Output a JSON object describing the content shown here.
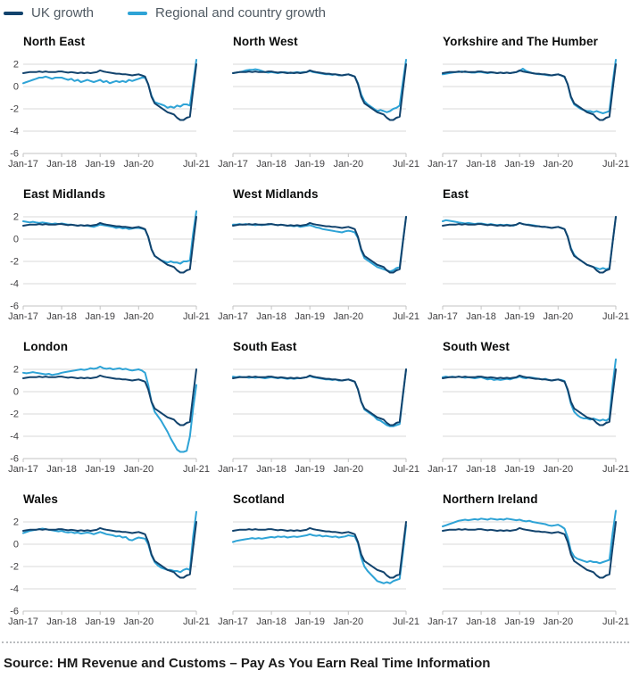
{
  "legend": {
    "items": [
      {
        "label": "UK growth",
        "color": "#12436d"
      },
      {
        "label": "Regional and country growth",
        "color": "#2ea3d6"
      }
    ]
  },
  "source": {
    "text": "Source: HM Revenue and Customs – Pay As You Earn Real Time Information"
  },
  "chart_data": {
    "type": "line",
    "layout": {
      "grid": "4 rows x 3 columns",
      "ylim": [
        -6,
        2
      ],
      "y_ticks": [
        2,
        0,
        -2,
        -4,
        -6
      ],
      "y_labels_first_column_only": true,
      "x_tick_labels": [
        "Jan-17",
        "Jan-18",
        "Jan-19",
        "Jan-20",
        "Jul-21"
      ],
      "x_tick_indices": [
        0,
        12,
        24,
        36,
        54
      ],
      "gridline_color": "#d9d9d9",
      "axis_color": "#c3c3c3",
      "legend_position": "top-left"
    },
    "categories": [
      "Jan-17",
      "Feb-17",
      "Mar-17",
      "Apr-17",
      "May-17",
      "Jun-17",
      "Jul-17",
      "Aug-17",
      "Sep-17",
      "Oct-17",
      "Nov-17",
      "Dec-17",
      "Jan-18",
      "Feb-18",
      "Mar-18",
      "Apr-18",
      "May-18",
      "Jun-18",
      "Jul-18",
      "Aug-18",
      "Sep-18",
      "Oct-18",
      "Nov-18",
      "Dec-18",
      "Jan-19",
      "Feb-19",
      "Mar-19",
      "Apr-19",
      "May-19",
      "Jun-19",
      "Jul-19",
      "Aug-19",
      "Sep-19",
      "Oct-19",
      "Nov-19",
      "Dec-19",
      "Jan-20",
      "Feb-20",
      "Mar-20",
      "Apr-20",
      "May-20",
      "Jun-20",
      "Jul-20",
      "Aug-20",
      "Sep-20",
      "Oct-20",
      "Nov-20",
      "Dec-20",
      "Jan-21",
      "Feb-21",
      "Mar-21",
      "Apr-21",
      "May-21",
      "Jun-21",
      "Jul-21"
    ],
    "uk_series": {
      "name": "UK growth",
      "values": [
        1.2,
        1.25,
        1.3,
        1.3,
        1.3,
        1.35,
        1.3,
        1.35,
        1.3,
        1.3,
        1.3,
        1.35,
        1.35,
        1.3,
        1.25,
        1.3,
        1.25,
        1.2,
        1.25,
        1.2,
        1.25,
        1.2,
        1.25,
        1.3,
        1.45,
        1.35,
        1.3,
        1.25,
        1.2,
        1.15,
        1.15,
        1.1,
        1.1,
        1.05,
        1.0,
        1.05,
        1.1,
        1.0,
        0.9,
        0.2,
        -0.9,
        -1.5,
        -1.7,
        -1.9,
        -2.1,
        -2.3,
        -2.4,
        -2.5,
        -2.8,
        -3.0,
        -3.0,
        -2.8,
        -2.7,
        -0.3,
        2.0
      ]
    },
    "panels": [
      {
        "title": "North East",
        "values": [
          0.3,
          0.4,
          0.5,
          0.6,
          0.7,
          0.8,
          0.8,
          0.9,
          0.8,
          0.7,
          0.8,
          0.8,
          0.8,
          0.7,
          0.6,
          0.7,
          0.5,
          0.6,
          0.4,
          0.5,
          0.6,
          0.5,
          0.4,
          0.5,
          0.6,
          0.4,
          0.5,
          0.3,
          0.4,
          0.5,
          0.4,
          0.5,
          0.4,
          0.6,
          0.5,
          0.6,
          0.7,
          0.8,
          0.8,
          0.2,
          -0.8,
          -1.4,
          -1.5,
          -1.6,
          -1.7,
          -1.9,
          -1.8,
          -1.9,
          -1.7,
          -1.8,
          -1.6,
          -1.6,
          -1.7,
          0.3,
          2.4
        ]
      },
      {
        "title": "North West",
        "values": [
          1.2,
          1.25,
          1.3,
          1.35,
          1.45,
          1.5,
          1.5,
          1.55,
          1.5,
          1.4,
          1.3,
          1.25,
          1.3,
          1.25,
          1.2,
          1.25,
          1.3,
          1.25,
          1.2,
          1.25,
          1.3,
          1.25,
          1.3,
          1.3,
          1.4,
          1.3,
          1.25,
          1.2,
          1.15,
          1.1,
          1.1,
          1.05,
          1.1,
          1.0,
          1.0,
          1.05,
          1.1,
          1.0,
          0.9,
          0.3,
          -0.7,
          -1.3,
          -1.6,
          -1.8,
          -2.0,
          -2.2,
          -2.1,
          -2.2,
          -2.3,
          -2.2,
          -2.0,
          -1.9,
          -1.7,
          0.4,
          2.4
        ]
      },
      {
        "title": "Yorkshire and The Humber",
        "values": [
          1.1,
          1.15,
          1.2,
          1.25,
          1.3,
          1.3,
          1.35,
          1.3,
          1.3,
          1.25,
          1.25,
          1.3,
          1.3,
          1.25,
          1.2,
          1.25,
          1.25,
          1.2,
          1.25,
          1.2,
          1.25,
          1.2,
          1.25,
          1.3,
          1.4,
          1.6,
          1.4,
          1.3,
          1.2,
          1.15,
          1.1,
          1.1,
          1.05,
          1.0,
          1.0,
          1.05,
          1.1,
          1.0,
          0.85,
          0.2,
          -1.0,
          -1.6,
          -1.8,
          -2.0,
          -2.1,
          -2.2,
          -2.2,
          -2.3,
          -2.2,
          -2.3,
          -2.4,
          -2.3,
          -2.2,
          0.3,
          2.4
        ]
      },
      {
        "title": "East Midlands",
        "values": [
          1.6,
          1.55,
          1.5,
          1.55,
          1.5,
          1.45,
          1.5,
          1.45,
          1.4,
          1.35,
          1.4,
          1.35,
          1.4,
          1.35,
          1.3,
          1.3,
          1.25,
          1.2,
          1.25,
          1.2,
          1.2,
          1.15,
          1.1,
          1.2,
          1.3,
          1.25,
          1.2,
          1.15,
          1.1,
          1.0,
          1.05,
          0.95,
          1.0,
          0.9,
          0.95,
          1.0,
          1.0,
          0.95,
          0.85,
          0.2,
          -0.9,
          -1.5,
          -1.7,
          -1.9,
          -2.0,
          -2.1,
          -2.0,
          -2.1,
          -2.1,
          -2.2,
          -2.0,
          -2.0,
          -1.9,
          0.5,
          2.5
        ]
      },
      {
        "title": "West Midlands",
        "values": [
          1.3,
          1.3,
          1.35,
          1.3,
          1.35,
          1.3,
          1.3,
          1.25,
          1.3,
          1.25,
          1.3,
          1.3,
          1.35,
          1.3,
          1.25,
          1.3,
          1.25,
          1.2,
          1.2,
          1.15,
          1.2,
          1.1,
          1.15,
          1.2,
          1.25,
          1.15,
          1.05,
          1.0,
          0.9,
          0.85,
          0.8,
          0.75,
          0.7,
          0.65,
          0.6,
          0.7,
          0.75,
          0.7,
          0.6,
          0.1,
          -1.0,
          -1.7,
          -1.9,
          -2.1,
          -2.3,
          -2.5,
          -2.6,
          -2.7,
          -2.8,
          -2.9,
          -2.8,
          -2.6,
          -2.5,
          -0.2,
          2.0
        ]
      },
      {
        "title": "East",
        "values": [
          1.6,
          1.7,
          1.65,
          1.6,
          1.55,
          1.5,
          1.45,
          1.4,
          1.45,
          1.4,
          1.35,
          1.4,
          1.4,
          1.35,
          1.3,
          1.35,
          1.3,
          1.25,
          1.3,
          1.25,
          1.3,
          1.25,
          1.2,
          1.3,
          1.45,
          1.35,
          1.3,
          1.3,
          1.25,
          1.2,
          1.15,
          1.1,
          1.1,
          1.05,
          1.0,
          1.05,
          1.1,
          1.0,
          0.9,
          0.25,
          -0.8,
          -1.4,
          -1.7,
          -1.9,
          -2.1,
          -2.3,
          -2.4,
          -2.5,
          -2.6,
          -2.7,
          -2.6,
          -2.7,
          -2.6,
          -0.3,
          2.0
        ]
      },
      {
        "title": "London",
        "values": [
          1.7,
          1.65,
          1.7,
          1.75,
          1.7,
          1.65,
          1.6,
          1.55,
          1.6,
          1.5,
          1.55,
          1.6,
          1.7,
          1.75,
          1.8,
          1.85,
          1.9,
          1.95,
          2.0,
          1.95,
          2.0,
          2.1,
          2.05,
          2.1,
          2.25,
          2.1,
          2.05,
          2.1,
          2.0,
          2.05,
          2.1,
          2.0,
          2.05,
          1.95,
          1.9,
          1.95,
          2.0,
          1.9,
          1.7,
          0.6,
          -0.9,
          -1.8,
          -2.2,
          -2.6,
          -3.1,
          -3.6,
          -4.2,
          -4.7,
          -5.2,
          -5.4,
          -5.4,
          -5.3,
          -4.0,
          -1.5,
          0.6
        ]
      },
      {
        "title": "South East",
        "values": [
          1.35,
          1.3,
          1.35,
          1.3,
          1.3,
          1.25,
          1.3,
          1.25,
          1.3,
          1.25,
          1.2,
          1.25,
          1.3,
          1.25,
          1.2,
          1.25,
          1.2,
          1.15,
          1.2,
          1.15,
          1.2,
          1.2,
          1.25,
          1.3,
          1.4,
          1.3,
          1.25,
          1.2,
          1.15,
          1.1,
          1.1,
          1.05,
          1.1,
          1.0,
          1.0,
          1.05,
          1.1,
          1.0,
          0.9,
          0.2,
          -0.9,
          -1.6,
          -1.8,
          -2.0,
          -2.2,
          -2.5,
          -2.6,
          -2.8,
          -3.0,
          -3.1,
          -3.1,
          -3.0,
          -2.9,
          -0.4,
          2.0
        ]
      },
      {
        "title": "South West",
        "values": [
          1.3,
          1.35,
          1.3,
          1.35,
          1.3,
          1.35,
          1.3,
          1.25,
          1.3,
          1.25,
          1.2,
          1.25,
          1.3,
          1.2,
          1.1,
          1.15,
          1.05,
          1.1,
          1.05,
          1.1,
          1.15,
          1.1,
          1.2,
          1.25,
          1.35,
          1.25,
          1.2,
          1.3,
          1.25,
          1.2,
          1.15,
          1.1,
          1.15,
          1.05,
          1.0,
          1.05,
          1.1,
          1.05,
          0.95,
          0.1,
          -1.1,
          -1.8,
          -2.1,
          -2.3,
          -2.4,
          -2.4,
          -2.5,
          -2.4,
          -2.5,
          -2.6,
          -2.5,
          -2.6,
          -2.4,
          0.6,
          2.9
        ]
      },
      {
        "title": "Wales",
        "values": [
          1.0,
          1.1,
          1.2,
          1.25,
          1.3,
          1.35,
          1.4,
          1.35,
          1.3,
          1.25,
          1.2,
          1.15,
          1.2,
          1.1,
          1.05,
          1.1,
          1.0,
          1.05,
          0.95,
          1.0,
          1.05,
          1.0,
          0.9,
          1.0,
          1.1,
          1.0,
          0.9,
          0.85,
          0.8,
          0.7,
          0.75,
          0.6,
          0.65,
          0.4,
          0.35,
          0.5,
          0.6,
          0.55,
          0.5,
          0.0,
          -1.0,
          -1.6,
          -1.9,
          -2.1,
          -2.2,
          -2.3,
          -2.3,
          -2.4,
          -2.4,
          -2.5,
          -2.3,
          -2.2,
          -2.3,
          0.7,
          2.9
        ]
      },
      {
        "title": "Scotland",
        "values": [
          0.2,
          0.3,
          0.35,
          0.4,
          0.45,
          0.5,
          0.55,
          0.5,
          0.55,
          0.5,
          0.55,
          0.6,
          0.65,
          0.6,
          0.7,
          0.65,
          0.7,
          0.6,
          0.65,
          0.7,
          0.65,
          0.7,
          0.75,
          0.8,
          0.9,
          0.8,
          0.75,
          0.8,
          0.7,
          0.75,
          0.7,
          0.65,
          0.7,
          0.6,
          0.65,
          0.7,
          0.8,
          0.75,
          0.7,
          0.1,
          -1.2,
          -2.0,
          -2.4,
          -2.7,
          -3.0,
          -3.3,
          -3.4,
          -3.5,
          -3.4,
          -3.5,
          -3.3,
          -3.2,
          -3.1,
          -0.8,
          1.7
        ]
      },
      {
        "title": "Northern Ireland",
        "values": [
          1.6,
          1.7,
          1.8,
          1.9,
          2.0,
          2.1,
          2.15,
          2.2,
          2.15,
          2.2,
          2.25,
          2.2,
          2.3,
          2.25,
          2.2,
          2.3,
          2.25,
          2.2,
          2.25,
          2.2,
          2.3,
          2.25,
          2.2,
          2.15,
          2.2,
          2.1,
          2.05,
          2.1,
          2.0,
          1.95,
          1.9,
          1.85,
          1.8,
          1.7,
          1.65,
          1.7,
          1.75,
          1.6,
          1.4,
          0.6,
          -0.6,
          -1.1,
          -1.3,
          -1.4,
          -1.5,
          -1.6,
          -1.5,
          -1.6,
          -1.6,
          -1.7,
          -1.6,
          -1.5,
          -1.4,
          1.0,
          3.0
        ]
      }
    ]
  }
}
